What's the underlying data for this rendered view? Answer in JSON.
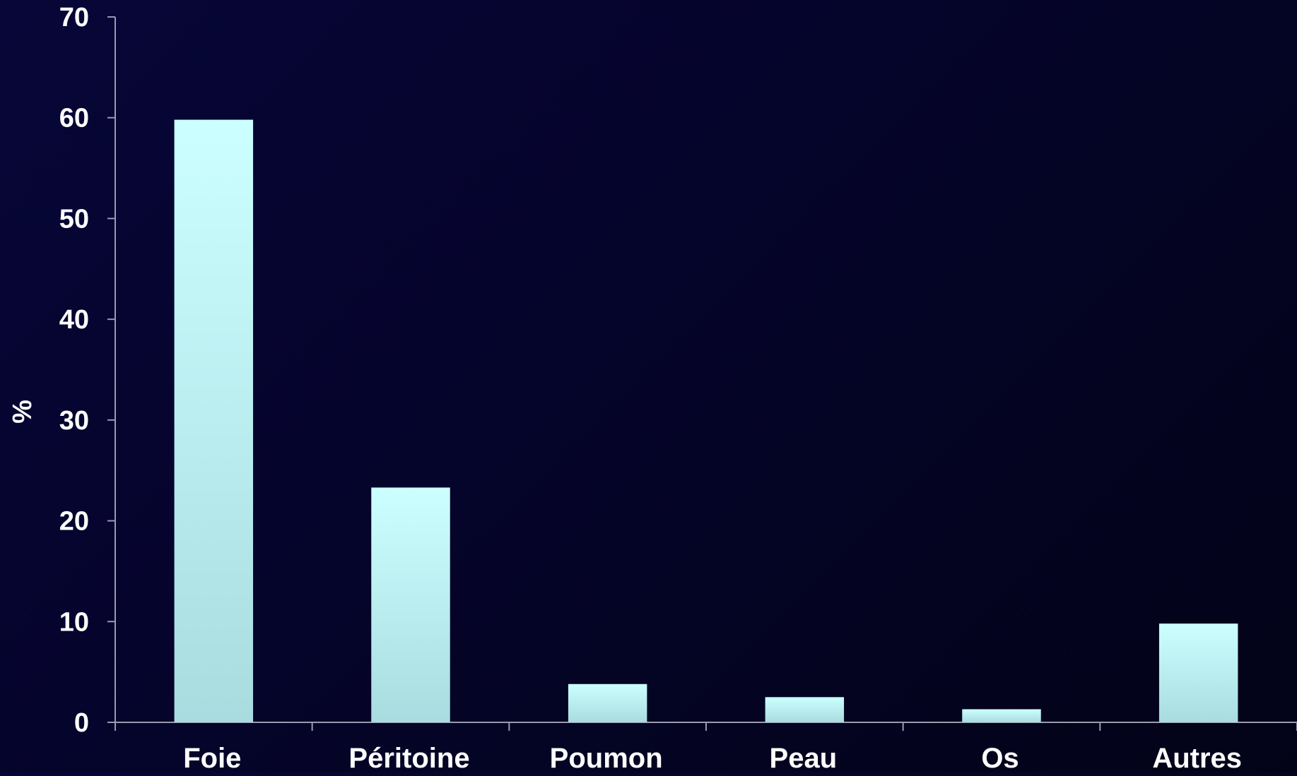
{
  "chart_data": {
    "type": "bar",
    "categories": [
      "Foie",
      "Péritoine",
      "Poumon",
      "Peau",
      "Os",
      "Autres"
    ],
    "values": [
      59.8,
      23.3,
      3.8,
      2.5,
      1.3,
      9.8
    ],
    "title": "",
    "xlabel": "",
    "ylabel": "%",
    "ylim": [
      0,
      70
    ],
    "yticks": [
      "0",
      "10",
      "20",
      "30",
      "40",
      "50",
      "60",
      "70"
    ],
    "grid": false,
    "legend": "none",
    "colors": {
      "bar_top": "#ccffff",
      "bar_bottom": "#a8dcdf",
      "axis": "#9a9ab0",
      "text": "#ffffff"
    }
  }
}
